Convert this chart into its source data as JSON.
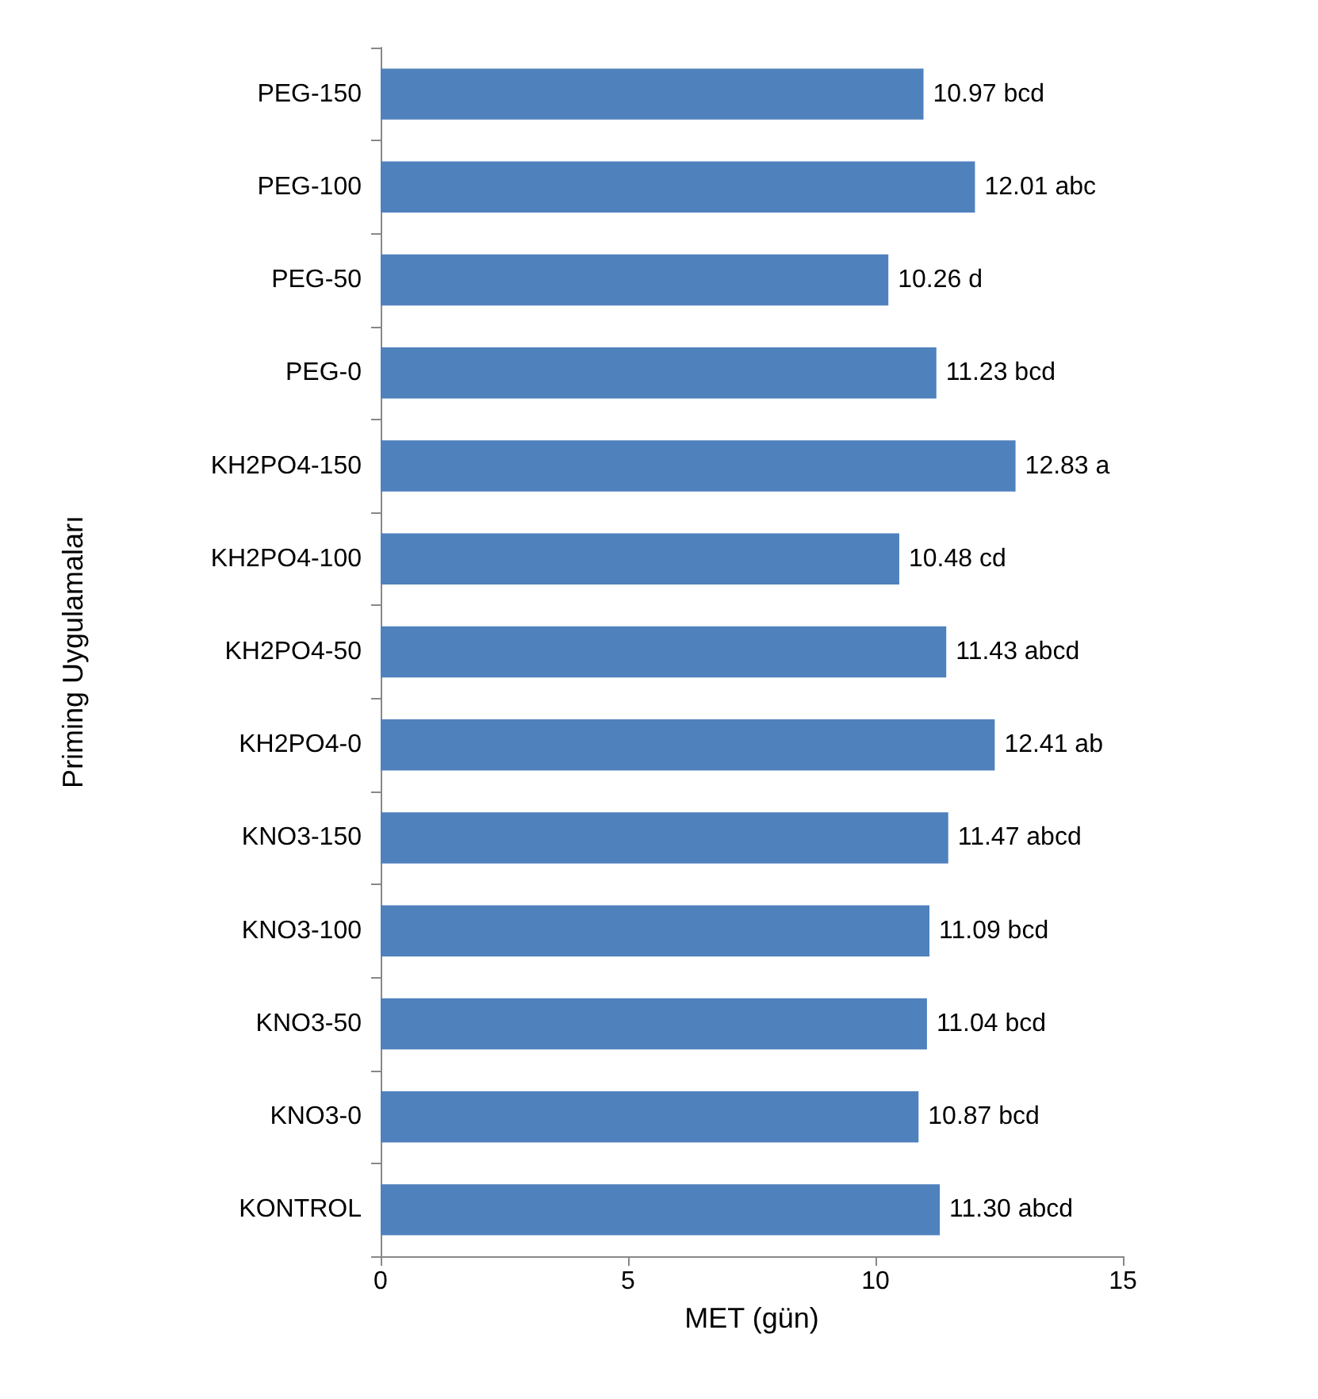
{
  "chart_data": {
    "type": "bar",
    "orientation": "horizontal",
    "xlabel": "MET (gün)",
    "ylabel": "Priming Uygulamaları",
    "categories": [
      "PEG-150",
      "PEG-100",
      "PEG-50",
      "PEG-0",
      "KH2PO4-150",
      "KH2PO4-100",
      "KH2PO4-50",
      "KH2PO4-0",
      "KNO3-150",
      "KNO3-100",
      "KNO3-50",
      "KNO3-0",
      "KONTROL"
    ],
    "values": [
      10.97,
      12.01,
      10.26,
      11.23,
      12.83,
      10.48,
      11.43,
      12.41,
      11.47,
      11.09,
      11.04,
      10.87,
      11.3
    ],
    "value_labels": [
      "10.97 bcd",
      "12.01 abc",
      "10.26 d",
      "11.23 bcd",
      "12.83 a",
      "10.48 cd",
      "11.43 abcd",
      "12.41 ab",
      "11.47 abcd",
      "11.09 bcd",
      "11.04 bcd",
      "10.87 bcd",
      "11.30 abcd"
    ],
    "color": "#4f81bd",
    "xlim": [
      0,
      15
    ],
    "xticks": [
      0,
      5,
      10,
      15
    ],
    "grid": false
  }
}
